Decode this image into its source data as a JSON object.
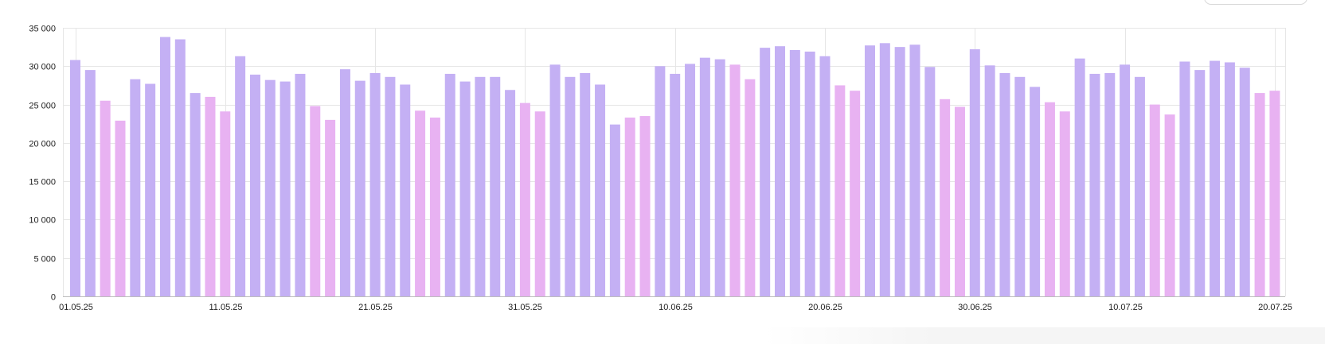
{
  "chart_data": {
    "type": "bar",
    "ylim": [
      0,
      35000
    ],
    "y_ticks": [
      0,
      5000,
      10000,
      15000,
      20000,
      25000,
      30000,
      35000
    ],
    "y_tick_labels": [
      "0",
      "5 000",
      "10 000",
      "15 000",
      "20 000",
      "25 000",
      "30 000",
      "35 000"
    ],
    "x_tick_labels": [
      {
        "label": "01.05.25",
        "index": 0,
        "highlight": false
      },
      {
        "label": "11.05.25",
        "index": 10,
        "highlight": true
      },
      {
        "label": "21.05.25",
        "index": 20,
        "highlight": false
      },
      {
        "label": "31.05.25",
        "index": 30,
        "highlight": true
      },
      {
        "label": "10.06.25",
        "index": 40,
        "highlight": false
      },
      {
        "label": "20.06.25",
        "index": 50,
        "highlight": false
      },
      {
        "label": "30.06.25",
        "index": 60,
        "highlight": false
      },
      {
        "label": "10.07.25",
        "index": 70,
        "highlight": false
      },
      {
        "label": "20.07.25",
        "index": 80,
        "highlight": true
      }
    ],
    "grid": true,
    "colors": {
      "weekday": "#c4b0f4",
      "weekend": "#e8b2f2",
      "grid": "#e6e6e6",
      "highlight_label": "#a21d1d"
    },
    "x": [
      "01.05.25",
      "02.05.25",
      "03.05.25",
      "04.05.25",
      "05.05.25",
      "06.05.25",
      "07.05.25",
      "08.05.25",
      "09.05.25",
      "10.05.25",
      "11.05.25",
      "12.05.25",
      "13.05.25",
      "14.05.25",
      "15.05.25",
      "16.05.25",
      "17.05.25",
      "18.05.25",
      "19.05.25",
      "20.05.25",
      "21.05.25",
      "22.05.25",
      "23.05.25",
      "24.05.25",
      "25.05.25",
      "26.05.25",
      "27.05.25",
      "28.05.25",
      "29.05.25",
      "30.05.25",
      "31.05.25",
      "01.06.25",
      "02.06.25",
      "03.06.25",
      "04.06.25",
      "05.06.25",
      "06.06.25",
      "07.06.25",
      "08.06.25",
      "09.06.25",
      "10.06.25",
      "11.06.25",
      "12.06.25",
      "13.06.25",
      "14.06.25",
      "15.06.25",
      "16.06.25",
      "17.06.25",
      "18.06.25",
      "19.06.25",
      "20.06.25",
      "21.06.25",
      "22.06.25",
      "23.06.25",
      "24.06.25",
      "25.06.25",
      "26.06.25",
      "27.06.25",
      "28.06.25",
      "29.06.25",
      "30.06.25",
      "01.07.25",
      "02.07.25",
      "03.07.25",
      "04.07.25",
      "05.07.25",
      "06.07.25",
      "07.07.25",
      "08.07.25",
      "09.07.25",
      "10.07.25",
      "11.07.25",
      "12.07.25",
      "13.07.25",
      "14.07.25",
      "15.07.25",
      "16.07.25",
      "17.07.25",
      "18.07.25",
      "19.07.25",
      "20.07.25"
    ],
    "values": [
      30800,
      29500,
      25500,
      22900,
      28300,
      27700,
      33800,
      33500,
      26500,
      26000,
      24100,
      31300,
      28900,
      28200,
      28000,
      29000,
      24800,
      23000,
      29600,
      28100,
      29100,
      28600,
      27600,
      24200,
      23300,
      29000,
      28000,
      28600,
      28600,
      26900,
      25200,
      24100,
      30200,
      28600,
      29100,
      27600,
      22400,
      23300,
      23500,
      30000,
      29000,
      30300,
      31100,
      30900,
      30200,
      28300,
      32400,
      32600,
      32100,
      31900,
      31300,
      27500,
      26800,
      32700,
      33000,
      32500,
      32800,
      29900,
      25700,
      24700,
      32200,
      30100,
      29100,
      28600,
      27300,
      25300,
      24100,
      31000,
      29000,
      29100,
      30200,
      28600,
      25000,
      23700,
      30600,
      29500,
      30700,
      30500,
      29800,
      26500,
      26800
    ],
    "weekend": [
      false,
      false,
      true,
      true,
      false,
      false,
      false,
      false,
      false,
      true,
      true,
      false,
      false,
      false,
      false,
      false,
      true,
      true,
      false,
      false,
      false,
      false,
      false,
      true,
      true,
      false,
      false,
      false,
      false,
      false,
      true,
      true,
      false,
      false,
      false,
      false,
      false,
      true,
      true,
      false,
      false,
      false,
      false,
      false,
      true,
      true,
      false,
      false,
      false,
      false,
      false,
      true,
      true,
      false,
      false,
      false,
      false,
      false,
      true,
      true,
      false,
      false,
      false,
      false,
      false,
      true,
      true,
      false,
      false,
      false,
      false,
      false,
      true,
      true,
      false,
      false,
      false,
      false,
      false,
      true,
      true
    ]
  }
}
